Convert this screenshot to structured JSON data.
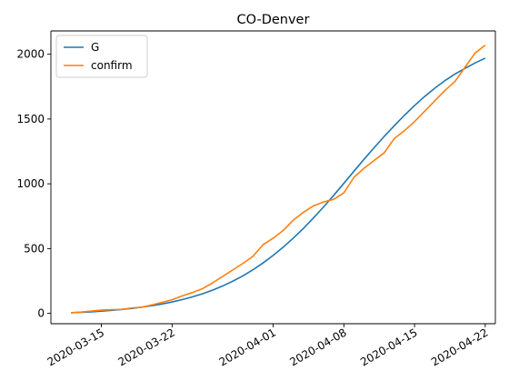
{
  "chart_data": {
    "type": "line",
    "title": "CO-Denver",
    "xlabel": "",
    "ylabel": "",
    "x_dates": [
      "2020-03-12",
      "2020-03-13",
      "2020-03-14",
      "2020-03-15",
      "2020-03-16",
      "2020-03-17",
      "2020-03-18",
      "2020-03-19",
      "2020-03-20",
      "2020-03-21",
      "2020-03-22",
      "2020-03-23",
      "2020-03-24",
      "2020-03-25",
      "2020-03-26",
      "2020-03-27",
      "2020-03-28",
      "2020-03-29",
      "2020-03-30",
      "2020-03-31",
      "2020-04-01",
      "2020-04-02",
      "2020-04-03",
      "2020-04-04",
      "2020-04-05",
      "2020-04-06",
      "2020-04-07",
      "2020-04-08",
      "2020-04-09",
      "2020-04-10",
      "2020-04-11",
      "2020-04-12",
      "2020-04-13",
      "2020-04-14",
      "2020-04-15",
      "2020-04-16",
      "2020-04-17",
      "2020-04-18",
      "2020-04-19",
      "2020-04-20",
      "2020-04-21",
      "2020-04-22"
    ],
    "series": [
      {
        "name": "G",
        "color": "#1f77b4",
        "values": [
          5,
          8,
          12,
          17,
          23,
          30,
          38,
          48,
          59,
          72,
          88,
          106,
          127,
          151,
          179,
          211,
          248,
          289,
          336,
          389,
          447,
          511,
          581,
          656,
          737,
          822,
          911,
          1004,
          1097,
          1189,
          1279,
          1366,
          1449,
          1529,
          1604,
          1674,
          1738,
          1796,
          1847,
          1891,
          1933,
          1970
        ]
      },
      {
        "name": "confirm",
        "color": "#ff7f0e",
        "values": [
          5,
          10,
          18,
          25,
          28,
          30,
          42,
          47,
          65,
          85,
          105,
          135,
          160,
          190,
          235,
          285,
          335,
          385,
          440,
          530,
          580,
          640,
          720,
          780,
          830,
          860,
          880,
          930,
          1050,
          1120,
          1180,
          1240,
          1350,
          1410,
          1480,
          1560,
          1640,
          1720,
          1790,
          1900,
          2010,
          2070
        ]
      }
    ],
    "xticks": [
      "2020-03-15",
      "2020-03-22",
      "2020-04-01",
      "2020-04-08",
      "2020-04-15",
      "2020-04-22"
    ],
    "yticks": [
      0,
      500,
      1000,
      1500,
      2000
    ],
    "xlim": [
      "2020-03-10",
      "2020-04-23"
    ],
    "ylim": [
      -80,
      2180
    ],
    "grid": false,
    "legend_position": "top-left"
  }
}
